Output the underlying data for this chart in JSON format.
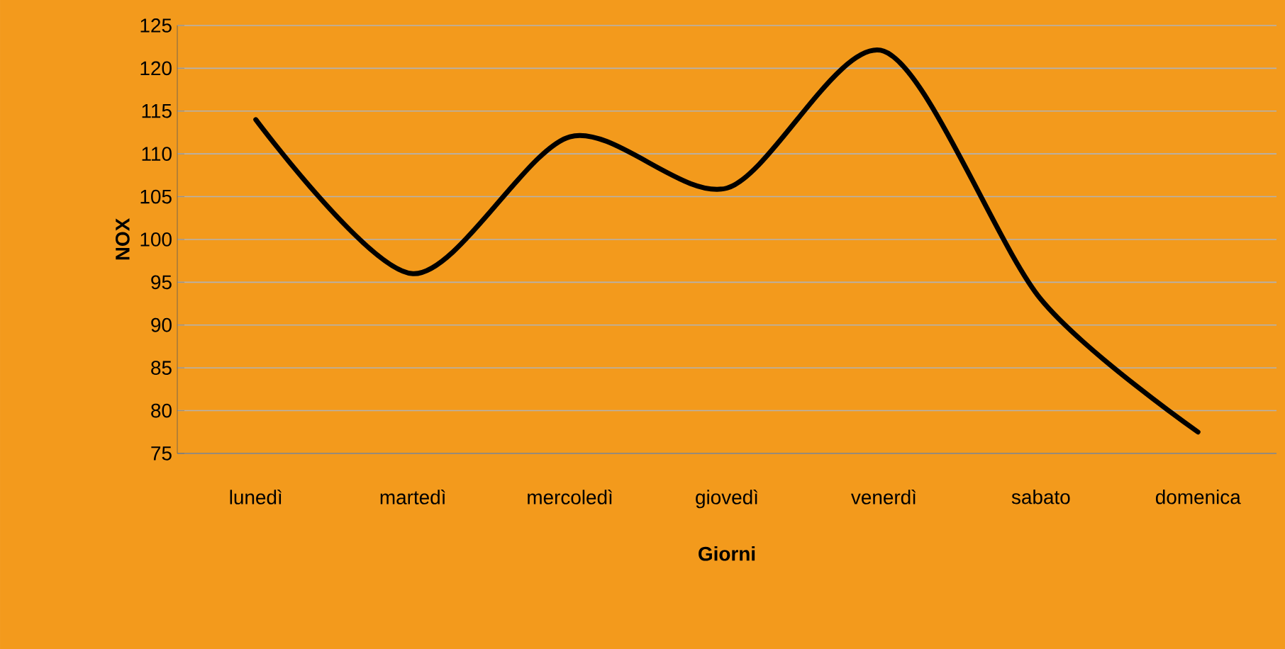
{
  "chart_data": {
    "type": "line",
    "xlabel": "Giorni",
    "ylabel": "NOX",
    "categories": [
      "lunedì",
      "martedì",
      "mercoledì",
      "giovedì",
      "venerdì",
      "sabato",
      "domenica"
    ],
    "series": [
      {
        "color": "#000000",
        "values": [
          114,
          96,
          112,
          106,
          122,
          93,
          77.5
        ]
      }
    ],
    "ylim": [
      75,
      125
    ],
    "yticks": [
      75,
      80,
      85,
      90,
      95,
      100,
      105,
      110,
      115,
      120,
      125
    ],
    "grid": "y",
    "marker": "none",
    "line_style": "solid"
  }
}
